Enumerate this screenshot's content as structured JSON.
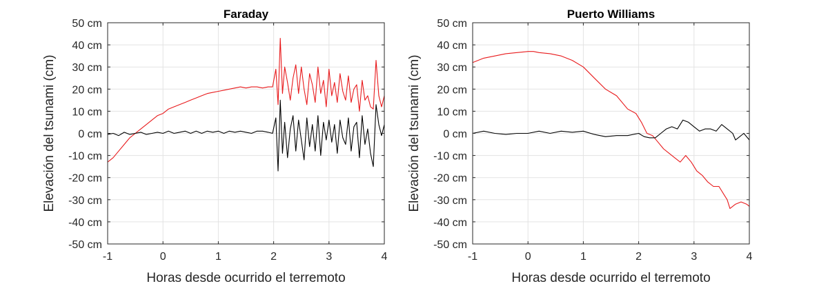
{
  "chart_data": [
    {
      "type": "line",
      "title": "Faraday",
      "xlabel": "Horas desde ocurrido el terremoto",
      "ylabel": "Elevación del tsunami (cm)",
      "xlim": [
        -1,
        4
      ],
      "ylim": [
        -50,
        50
      ],
      "xticks": [
        "-1",
        "0",
        "1",
        "2",
        "3",
        "4"
      ],
      "yticks": [
        "-50 cm",
        "-40 cm",
        "-30 cm",
        "-20 cm",
        "-10 cm",
        "0 cm",
        "10 cm",
        "20 cm",
        "30 cm",
        "40 cm",
        "50 cm"
      ],
      "grid": true,
      "series": [
        {
          "color": "#e8191b",
          "x": [
            -1.0,
            -0.9,
            -0.8,
            -0.7,
            -0.6,
            -0.5,
            -0.4,
            -0.3,
            -0.2,
            -0.1,
            0.0,
            0.1,
            0.2,
            0.3,
            0.4,
            0.5,
            0.6,
            0.7,
            0.8,
            0.9,
            1.0,
            1.1,
            1.2,
            1.3,
            1.4,
            1.5,
            1.6,
            1.7,
            1.8,
            1.9,
            1.98,
            2.04,
            2.08,
            2.12,
            2.16,
            2.2,
            2.25,
            2.3,
            2.35,
            2.4,
            2.45,
            2.5,
            2.55,
            2.6,
            2.65,
            2.7,
            2.75,
            2.8,
            2.85,
            2.9,
            2.95,
            3.0,
            3.05,
            3.1,
            3.15,
            3.2,
            3.25,
            3.3,
            3.35,
            3.4,
            3.45,
            3.5,
            3.55,
            3.6,
            3.65,
            3.7,
            3.75,
            3.8,
            3.85,
            3.9,
            3.95,
            4.0
          ],
          "y": [
            -13,
            -11,
            -8,
            -5,
            -2,
            0,
            2,
            4,
            6,
            8,
            9,
            11,
            12,
            13,
            14,
            15,
            16,
            17,
            18,
            18.5,
            19,
            19.5,
            20,
            20.5,
            21,
            20.5,
            21,
            21,
            20.5,
            21,
            21,
            29,
            13,
            43,
            18,
            30,
            23,
            15,
            25,
            31,
            18,
            30,
            20,
            13,
            27,
            22,
            14,
            30,
            18,
            24,
            12,
            29,
            17,
            23,
            14,
            27,
            19,
            15,
            26,
            14,
            20,
            22,
            10,
            24,
            15,
            17,
            12,
            11,
            33,
            17,
            12,
            17
          ]
        },
        {
          "color": "#000000",
          "x": [
            -1.0,
            -0.9,
            -0.8,
            -0.7,
            -0.6,
            -0.5,
            -0.4,
            -0.3,
            -0.2,
            -0.1,
            0.0,
            0.1,
            0.2,
            0.3,
            0.4,
            0.5,
            0.6,
            0.7,
            0.8,
            0.9,
            1.0,
            1.1,
            1.2,
            1.3,
            1.4,
            1.5,
            1.6,
            1.7,
            1.8,
            1.9,
            1.98,
            2.04,
            2.08,
            2.12,
            2.16,
            2.2,
            2.25,
            2.3,
            2.35,
            2.4,
            2.45,
            2.5,
            2.55,
            2.6,
            2.65,
            2.7,
            2.75,
            2.8,
            2.85,
            2.9,
            2.95,
            3.0,
            3.05,
            3.1,
            3.15,
            3.2,
            3.25,
            3.3,
            3.35,
            3.4,
            3.45,
            3.5,
            3.55,
            3.6,
            3.65,
            3.7,
            3.75,
            3.8,
            3.85,
            3.9,
            3.95,
            4.0
          ],
          "y": [
            -0.5,
            0,
            -1,
            0.5,
            -0.5,
            0,
            0.5,
            -0.5,
            0,
            0.5,
            0,
            1,
            0,
            0.5,
            1,
            0,
            1,
            0,
            1,
            0.5,
            1,
            0,
            1,
            0.5,
            1,
            0.5,
            0,
            1,
            1,
            0.5,
            0,
            7,
            -17,
            15,
            -9,
            5,
            -11,
            2,
            8,
            -8,
            6,
            -3,
            -12,
            7,
            -6,
            4,
            -8,
            8,
            -10,
            5,
            -3,
            6,
            -4,
            4,
            -9,
            6,
            -2,
            -5,
            7,
            -8,
            3,
            5,
            -11,
            8,
            -5,
            2,
            -9,
            -15,
            13,
            4,
            -1,
            4
          ]
        }
      ]
    },
    {
      "type": "line",
      "title": "Puerto Williams",
      "xlabel": "Horas desde ocurrido el terremoto",
      "ylabel": "Elevación del tsunami (cm)",
      "xlim": [
        -1,
        4
      ],
      "ylim": [
        -50,
        50
      ],
      "xticks": [
        "-1",
        "0",
        "1",
        "2",
        "3",
        "4"
      ],
      "yticks": [
        "-50 cm",
        "-40 cm",
        "-30 cm",
        "-20 cm",
        "-10 cm",
        "0 cm",
        "10 cm",
        "20 cm",
        "30 cm",
        "40 cm",
        "50 cm"
      ],
      "grid": true,
      "series": [
        {
          "color": "#e8191b",
          "x": [
            -1.0,
            -0.8,
            -0.6,
            -0.4,
            -0.2,
            0.0,
            0.1,
            0.2,
            0.4,
            0.6,
            0.8,
            1.0,
            1.2,
            1.4,
            1.6,
            1.8,
            1.95,
            2.05,
            2.15,
            2.25,
            2.35,
            2.45,
            2.55,
            2.65,
            2.75,
            2.85,
            2.95,
            3.05,
            3.15,
            3.25,
            3.35,
            3.45,
            3.55,
            3.6,
            3.65,
            3.75,
            3.85,
            3.95,
            4.0
          ],
          "y": [
            32,
            34,
            35,
            36,
            36.5,
            37,
            37,
            36.5,
            36,
            35,
            33,
            30,
            25,
            20,
            17,
            11,
            9,
            5,
            0,
            -1,
            -4,
            -7,
            -9,
            -11,
            -13,
            -10,
            -13,
            -17,
            -19,
            -22,
            -24,
            -24,
            -28,
            -30,
            -34,
            -32,
            -31,
            -32,
            -33
          ]
        },
        {
          "color": "#000000",
          "x": [
            -1.0,
            -0.8,
            -0.6,
            -0.4,
            -0.2,
            0.0,
            0.2,
            0.4,
            0.6,
            0.8,
            1.0,
            1.2,
            1.4,
            1.6,
            1.8,
            2.0,
            2.1,
            2.2,
            2.3,
            2.4,
            2.5,
            2.6,
            2.7,
            2.8,
            2.9,
            3.0,
            3.1,
            3.2,
            3.3,
            3.4,
            3.5,
            3.6,
            3.7,
            3.75,
            3.8,
            3.9,
            4.0
          ],
          "y": [
            0,
            1,
            0,
            -0.5,
            0,
            0,
            1,
            0,
            1,
            0.5,
            1,
            -0.5,
            -1.5,
            -1,
            -1,
            0,
            -1.5,
            -2,
            -2,
            0,
            2,
            3,
            2,
            6,
            5,
            3,
            1,
            2,
            2,
            1,
            4,
            2,
            0,
            -3,
            -2,
            0,
            -3
          ]
        }
      ]
    }
  ]
}
